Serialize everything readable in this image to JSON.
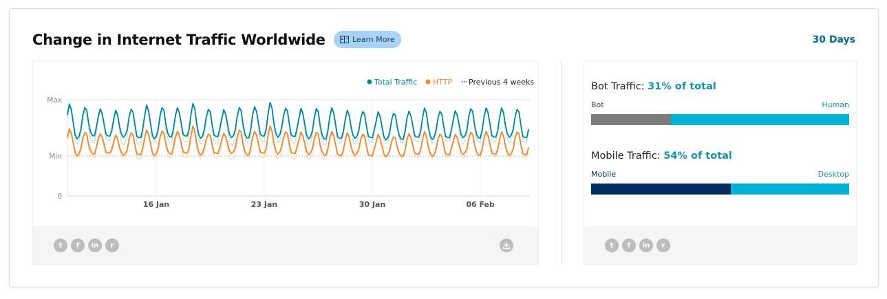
{
  "header": {
    "title": "Change in Internet Traffic Worldwide",
    "learn_more": "Learn More",
    "period": "30 Days"
  },
  "colors": {
    "total": "#00879e",
    "total_prev": "#7fd1dc",
    "http": "#f5842b",
    "http_prev": "#fbc58e",
    "bot": "#7b7b7b",
    "human": "#00b2d6",
    "mobile": "#002c61",
    "desktop": "#00b2d6"
  },
  "chart_data": {
    "type": "line",
    "legend": [
      {
        "key": "total",
        "label": "Total Traffic"
      },
      {
        "key": "http",
        "label": "HTTP"
      },
      {
        "key": "prev",
        "label": "Previous 4 weeks"
      }
    ],
    "legend_position": "top-right",
    "y_ticks": [
      "Max",
      "Min",
      "0"
    ],
    "x_ticks": [
      "16 Jan",
      "23 Jan",
      "30 Jan",
      "06 Feb"
    ],
    "x_range_days": [
      0,
      30
    ],
    "x_tick_days": [
      5.75,
      12.75,
      19.75,
      26.75
    ],
    "y_range": [
      0,
      1
    ],
    "samples_per_day": 8,
    "series": [
      {
        "name": "Total Traffic",
        "key": "total",
        "style": "solid",
        "daily_base": [
          0.66,
          0.68,
          0.67,
          0.67,
          0.66,
          0.66,
          0.67,
          0.67,
          0.66,
          0.67,
          0.67,
          0.66,
          0.67,
          0.67,
          0.67,
          0.66,
          0.65,
          0.65,
          0.66,
          0.66,
          0.65,
          0.65,
          0.66,
          0.65,
          0.66,
          0.67,
          0.66,
          0.66,
          0.67,
          0.66
        ],
        "daily_peak": [
          0.96,
          0.94,
          0.92,
          0.9,
          0.92,
          0.95,
          0.94,
          0.93,
          0.96,
          0.92,
          0.91,
          0.94,
          0.94,
          0.97,
          0.93,
          0.92,
          0.93,
          0.93,
          0.9,
          0.9,
          0.89,
          0.89,
          0.9,
          0.92,
          0.9,
          0.9,
          0.93,
          0.93,
          0.92,
          0.92
        ]
      },
      {
        "name": "HTTP",
        "key": "http",
        "style": "solid",
        "daily_base": [
          0.51,
          0.52,
          0.52,
          0.51,
          0.51,
          0.51,
          0.52,
          0.52,
          0.51,
          0.52,
          0.53,
          0.51,
          0.52,
          0.52,
          0.52,
          0.52,
          0.51,
          0.5,
          0.51,
          0.5,
          0.5,
          0.5,
          0.51,
          0.5,
          0.51,
          0.52,
          0.51,
          0.51,
          0.51,
          0.51
        ],
        "daily_peak": [
          0.74,
          0.72,
          0.7,
          0.68,
          0.71,
          0.73,
          0.73,
          0.72,
          0.76,
          0.7,
          0.7,
          0.74,
          0.72,
          0.76,
          0.72,
          0.71,
          0.72,
          0.72,
          0.7,
          0.7,
          0.69,
          0.68,
          0.7,
          0.71,
          0.7,
          0.69,
          0.72,
          0.72,
          0.71,
          0.72
        ]
      },
      {
        "key": "total_prev",
        "style": "dotted",
        "daily_base": [
          0.62,
          0.62,
          0.63,
          0.6,
          0.6,
          0.63,
          0.62,
          0.62,
          0.61,
          0.61,
          0.6,
          0.62,
          0.62,
          0.62,
          0.61,
          0.6,
          0.6,
          0.61,
          0.61,
          0.62,
          0.62,
          0.62,
          0.62,
          0.62,
          0.62,
          0.62,
          0.62,
          0.62,
          0.62,
          0.62
        ],
        "daily_peak": [
          0.94,
          0.91,
          0.9,
          0.88,
          0.92,
          0.93,
          0.91,
          0.92,
          0.95,
          0.9,
          0.9,
          0.92,
          0.94,
          0.96,
          0.92,
          0.91,
          0.91,
          0.91,
          0.9,
          0.9,
          0.88,
          0.89,
          0.9,
          0.92,
          0.91,
          0.89,
          0.92,
          0.92,
          0.92,
          0.92
        ]
      },
      {
        "key": "http_prev",
        "style": "dotted",
        "daily_base": [
          0.48,
          0.48,
          0.49,
          0.47,
          0.46,
          0.48,
          0.48,
          0.48,
          0.47,
          0.47,
          0.46,
          0.47,
          0.47,
          0.47,
          0.46,
          0.46,
          0.46,
          0.47,
          0.47,
          0.48,
          0.48,
          0.48,
          0.48,
          0.48,
          0.48,
          0.48,
          0.48,
          0.48,
          0.48,
          0.48
        ],
        "daily_peak": [
          0.72,
          0.7,
          0.69,
          0.67,
          0.7,
          0.72,
          0.71,
          0.7,
          0.73,
          0.69,
          0.69,
          0.71,
          0.72,
          0.74,
          0.7,
          0.7,
          0.7,
          0.7,
          0.69,
          0.69,
          0.68,
          0.68,
          0.69,
          0.7,
          0.7,
          0.68,
          0.71,
          0.71,
          0.71,
          0.71
        ]
      }
    ]
  },
  "side": {
    "bot": {
      "label": "Bot Traffic: ",
      "pct_text": "31% of total",
      "left_label": "Bot",
      "right_label": "Human",
      "fraction": 0.31
    },
    "mobile": {
      "label": "Mobile Traffic: ",
      "pct_text": "54% of total",
      "left_label": "Mobile",
      "right_label": "Desktop",
      "fraction": 0.54
    }
  },
  "share": {
    "icons": [
      "twitter-icon",
      "facebook-icon",
      "linkedin-icon",
      "reddit-icon"
    ],
    "glyphs": [
      "t",
      "f",
      "in",
      "r"
    ]
  }
}
